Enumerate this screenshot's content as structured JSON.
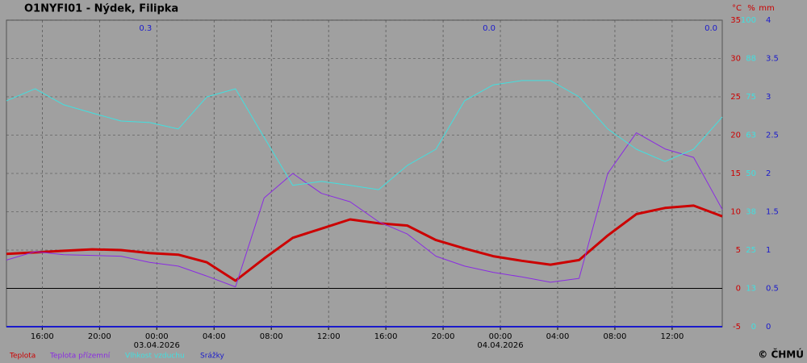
{
  "chart_data": {
    "type": "line",
    "title": "O1NYFI01 - Nýdek, Filipka",
    "y_unit": "°C",
    "y2_unit": "%",
    "y3_unit": "mm",
    "copyright": "© ČHMÚ",
    "x": [
      "2026-04-02T13:30",
      "2026-04-02T15:30",
      "2026-04-02T17:30",
      "2026-04-02T19:30",
      "2026-04-02T21:30",
      "2026-04-02T23:30",
      "2026-04-03T01:30",
      "2026-04-03T03:30",
      "2026-04-03T05:30",
      "2026-04-03T07:30",
      "2026-04-03T09:30",
      "2026-04-03T11:30",
      "2026-04-03T13:30",
      "2026-04-03T15:30",
      "2026-04-03T17:30",
      "2026-04-03T19:30",
      "2026-04-03T21:30",
      "2026-04-03T23:30",
      "2026-04-04T01:30",
      "2026-04-04T03:30",
      "2026-04-04T05:30",
      "2026-04-04T07:30",
      "2026-04-04T09:30",
      "2026-04-04T11:30",
      "2026-04-04T13:30",
      "2026-04-04T15:30"
    ],
    "xlim": [
      "2026-04-02T13:30",
      "2026-04-04T15:30"
    ],
    "xticks": [
      {
        "value": "2026-04-02T16:00",
        "label": "16:00"
      },
      {
        "value": "2026-04-02T20:00",
        "label": "20:00"
      },
      {
        "value": "2026-04-03T00:00",
        "label": "00:00"
      },
      {
        "value": "2026-04-03T04:00",
        "label": "04:00"
      },
      {
        "value": "2026-04-03T08:00",
        "label": "08:00"
      },
      {
        "value": "2026-04-03T12:00",
        "label": "12:00"
      },
      {
        "value": "2026-04-03T16:00",
        "label": "16:00"
      },
      {
        "value": "2026-04-03T20:00",
        "label": "20:00"
      },
      {
        "value": "2026-04-04T00:00",
        "label": "00:00"
      },
      {
        "value": "2026-04-04T04:00",
        "label": "04:00"
      },
      {
        "value": "2026-04-04T08:00",
        "label": "08:00"
      },
      {
        "value": "2026-04-04T12:00",
        "label": "12:00"
      }
    ],
    "date_ticks": [
      {
        "value": "2026-04-03T00:00",
        "label": "03.04.2026"
      },
      {
        "value": "2026-04-04T00:00",
        "label": "04.04.2026"
      }
    ],
    "daily_totals": [
      {
        "value": "2026-04-03T00:00",
        "label": "0.3"
      },
      {
        "value": "2026-04-04T00:00",
        "label": "0.0"
      },
      {
        "value": "2026-04-04T15:30",
        "label": "0.0"
      }
    ],
    "ylim": [
      -5,
      35
    ],
    "yticks": [
      -5,
      0,
      5,
      10,
      15,
      20,
      25,
      30,
      35
    ],
    "y2lim": [
      0,
      100
    ],
    "y2ticks": [
      0,
      {
        "value": 12.5,
        "label": "13"
      },
      25,
      {
        "value": 37.5,
        "label": "38"
      },
      50,
      {
        "value": 62.5,
        "label": "63"
      },
      75,
      {
        "value": 87.5,
        "label": "88"
      },
      100
    ],
    "y3lim": [
      0,
      4
    ],
    "y3ticks": [
      0,
      0.5,
      1,
      1.5,
      2,
      2.5,
      3,
      3.5,
      4
    ],
    "grid": true,
    "zero_line": true,
    "legend": "bottom-left",
    "series": [
      {
        "name": "Teplota",
        "color": "#cc0000",
        "width": 3,
        "values": [
          4.5,
          4.7,
          4.9,
          5.1,
          5.0,
          4.6,
          4.4,
          3.4,
          1.0,
          3.9,
          6.6,
          7.8,
          9.0,
          8.5,
          8.2,
          6.3,
          5.2,
          4.2,
          3.6,
          3.1,
          3.7,
          6.9,
          9.7,
          10.5,
          10.8,
          9.4
        ]
      },
      {
        "name": "Teplota přízemní",
        "color": "#8a2be2",
        "width": 1,
        "values": [
          3.7,
          4.8,
          4.4,
          4.3,
          4.2,
          3.4,
          2.9,
          1.6,
          0.2,
          11.8,
          15.0,
          12.4,
          11.3,
          8.7,
          7.1,
          4.2,
          2.9,
          2.1,
          1.5,
          0.8,
          1.3,
          15.0,
          20.3,
          18.2,
          17.1,
          10.3
        ]
      },
      {
        "name": "Vlhkost vzduchu",
        "color": "#40e0e0",
        "width": 1,
        "axis": "y2",
        "values": [
          73.7,
          77.6,
          72.4,
          69.7,
          67.1,
          66.6,
          64.5,
          75.0,
          77.6,
          61.8,
          46.1,
          47.4,
          46.1,
          44.7,
          52.6,
          57.9,
          73.7,
          78.9,
          80.3,
          80.3,
          75.0,
          64.5,
          57.9,
          53.9,
          57.9,
          68.4
        ]
      },
      {
        "name": "Srážky",
        "color": "#1a1acc",
        "width": 2,
        "axis": "y3",
        "values": [
          0,
          0,
          0,
          0,
          0,
          0,
          0,
          0,
          0,
          0,
          0,
          0,
          0,
          0,
          0,
          0,
          0,
          0,
          0,
          0,
          0,
          0,
          0,
          0,
          0,
          0
        ]
      }
    ]
  }
}
